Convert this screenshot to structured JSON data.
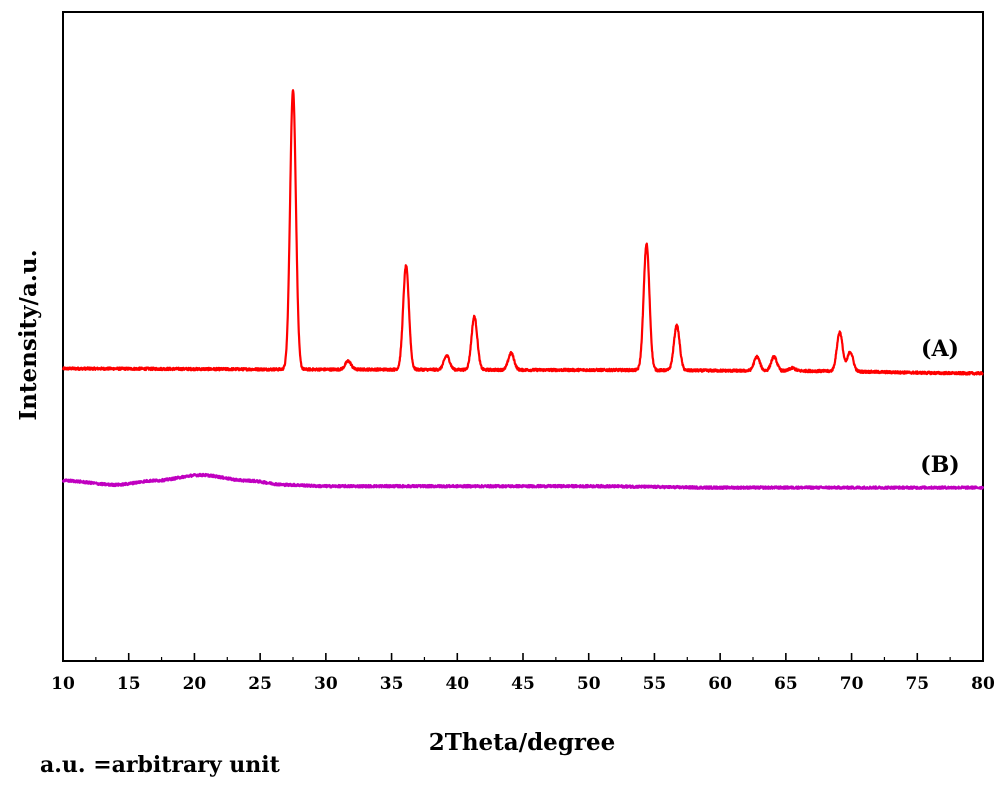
{
  "chart_data": {
    "type": "line",
    "title": "",
    "xlabel": "2Theta/degree",
    "ylabel": "Intensity/a.u.",
    "xlim": [
      10,
      80
    ],
    "x_ticks": [
      10,
      15,
      20,
      25,
      30,
      35,
      40,
      45,
      50,
      55,
      60,
      65,
      70,
      75,
      80
    ],
    "y_ticks_shown": false,
    "grid": false,
    "legend": "none",
    "series": [
      {
        "name": "(A)",
        "color": "#ff0000",
        "baseline": [
          [
            10,
            0.5
          ],
          [
            30,
            0.2
          ],
          [
            50,
            0.0
          ],
          [
            65,
            -0.3
          ],
          [
            80,
            -1.2
          ]
        ],
        "peaks": [
          {
            "x": 27.5,
            "height": 100,
            "width": 0.22
          },
          {
            "x": 31.7,
            "height": 3,
            "width": 0.22
          },
          {
            "x": 36.1,
            "height": 37,
            "width": 0.22
          },
          {
            "x": 39.2,
            "height": 5,
            "width": 0.22
          },
          {
            "x": 41.3,
            "height": 19,
            "width": 0.22
          },
          {
            "x": 44.1,
            "height": 6,
            "width": 0.22
          },
          {
            "x": 54.4,
            "height": 45,
            "width": 0.22
          },
          {
            "x": 56.7,
            "height": 16,
            "width": 0.22
          },
          {
            "x": 62.8,
            "height": 5,
            "width": 0.22
          },
          {
            "x": 64.1,
            "height": 5,
            "width": 0.22
          },
          {
            "x": 65.5,
            "height": 1,
            "width": 0.22
          },
          {
            "x": 69.1,
            "height": 14,
            "width": 0.22
          },
          {
            "x": 69.9,
            "height": 7,
            "width": 0.22
          }
        ]
      },
      {
        "name": "(B)",
        "color": "#c000c0",
        "baseline": [
          [
            10,
            -39.5
          ],
          [
            14,
            -41
          ],
          [
            17,
            -39.5
          ],
          [
            20.5,
            -37.5
          ],
          [
            24,
            -39.5
          ],
          [
            27,
            -41
          ],
          [
            30,
            -41.5
          ],
          [
            40,
            -41.5
          ],
          [
            50,
            -41.5
          ],
          [
            60,
            -42
          ],
          [
            70,
            -42
          ],
          [
            80,
            -42
          ]
        ],
        "peaks": []
      }
    ]
  },
  "footnote": "a.u. =arbitrary unit"
}
